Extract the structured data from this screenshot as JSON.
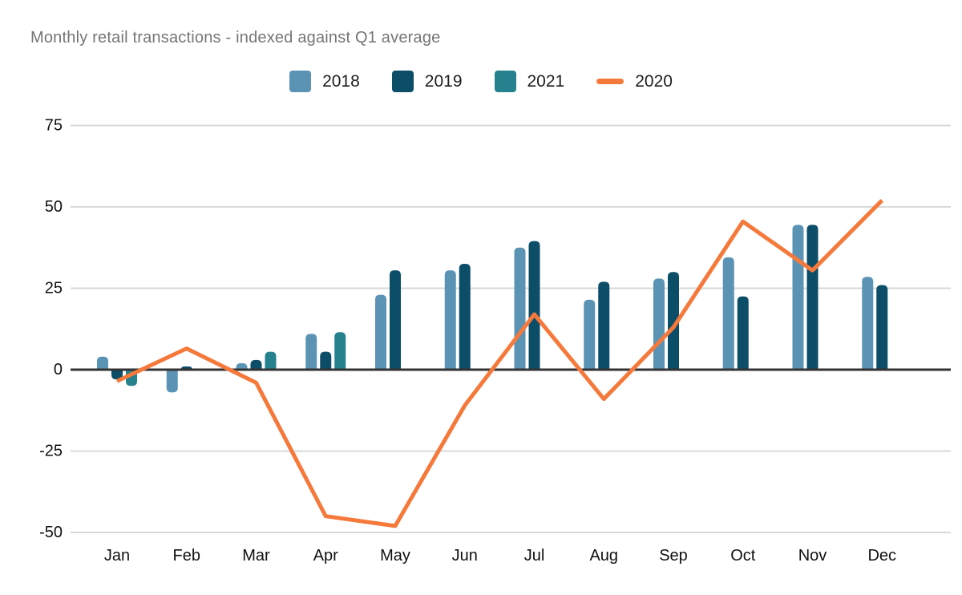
{
  "chart_data": {
    "type": "combo-bar-line",
    "title": "Monthly retail transactions - indexed against Q1 average",
    "categories": [
      "Jan",
      "Feb",
      "Mar",
      "Apr",
      "May",
      "Jun",
      "Jul",
      "Aug",
      "Sep",
      "Oct",
      "Nov",
      "Dec"
    ],
    "series": [
      {
        "name": "2018",
        "type": "bar",
        "color": "#5b93b4",
        "values": [
          4,
          -7,
          2,
          11,
          23,
          30.5,
          37.5,
          21.5,
          28,
          34.5,
          44.5,
          28.5
        ]
      },
      {
        "name": "2019",
        "type": "bar",
        "color": "#0c4d68",
        "values": [
          -3,
          1,
          3,
          5.5,
          30.5,
          32.5,
          39.5,
          27,
          30,
          22.5,
          44.5,
          26
        ]
      },
      {
        "name": "2021",
        "type": "bar",
        "color": "#26818e",
        "values": [
          -5,
          null,
          5.5,
          11.5,
          null,
          null,
          null,
          null,
          null,
          null,
          null,
          null
        ]
      },
      {
        "name": "2020",
        "type": "line",
        "color": "#f5793b",
        "values": [
          -3.5,
          6.5,
          -4,
          -45,
          -48,
          -11,
          17,
          -9,
          13,
          45.5,
          30.5,
          52
        ]
      }
    ],
    "legend_order": [
      "2018",
      "2019",
      "2021",
      "2020"
    ],
    "legend_position": "top",
    "y_ticks": [
      75,
      50,
      25,
      0,
      -25,
      -50
    ],
    "ylim": [
      -55,
      80
    ],
    "grid": true,
    "gridline_color": "#d9d9d9",
    "axis_color": "#333333",
    "title_color": "#757575",
    "text_color": "#111111",
    "background": "#ffffff"
  }
}
